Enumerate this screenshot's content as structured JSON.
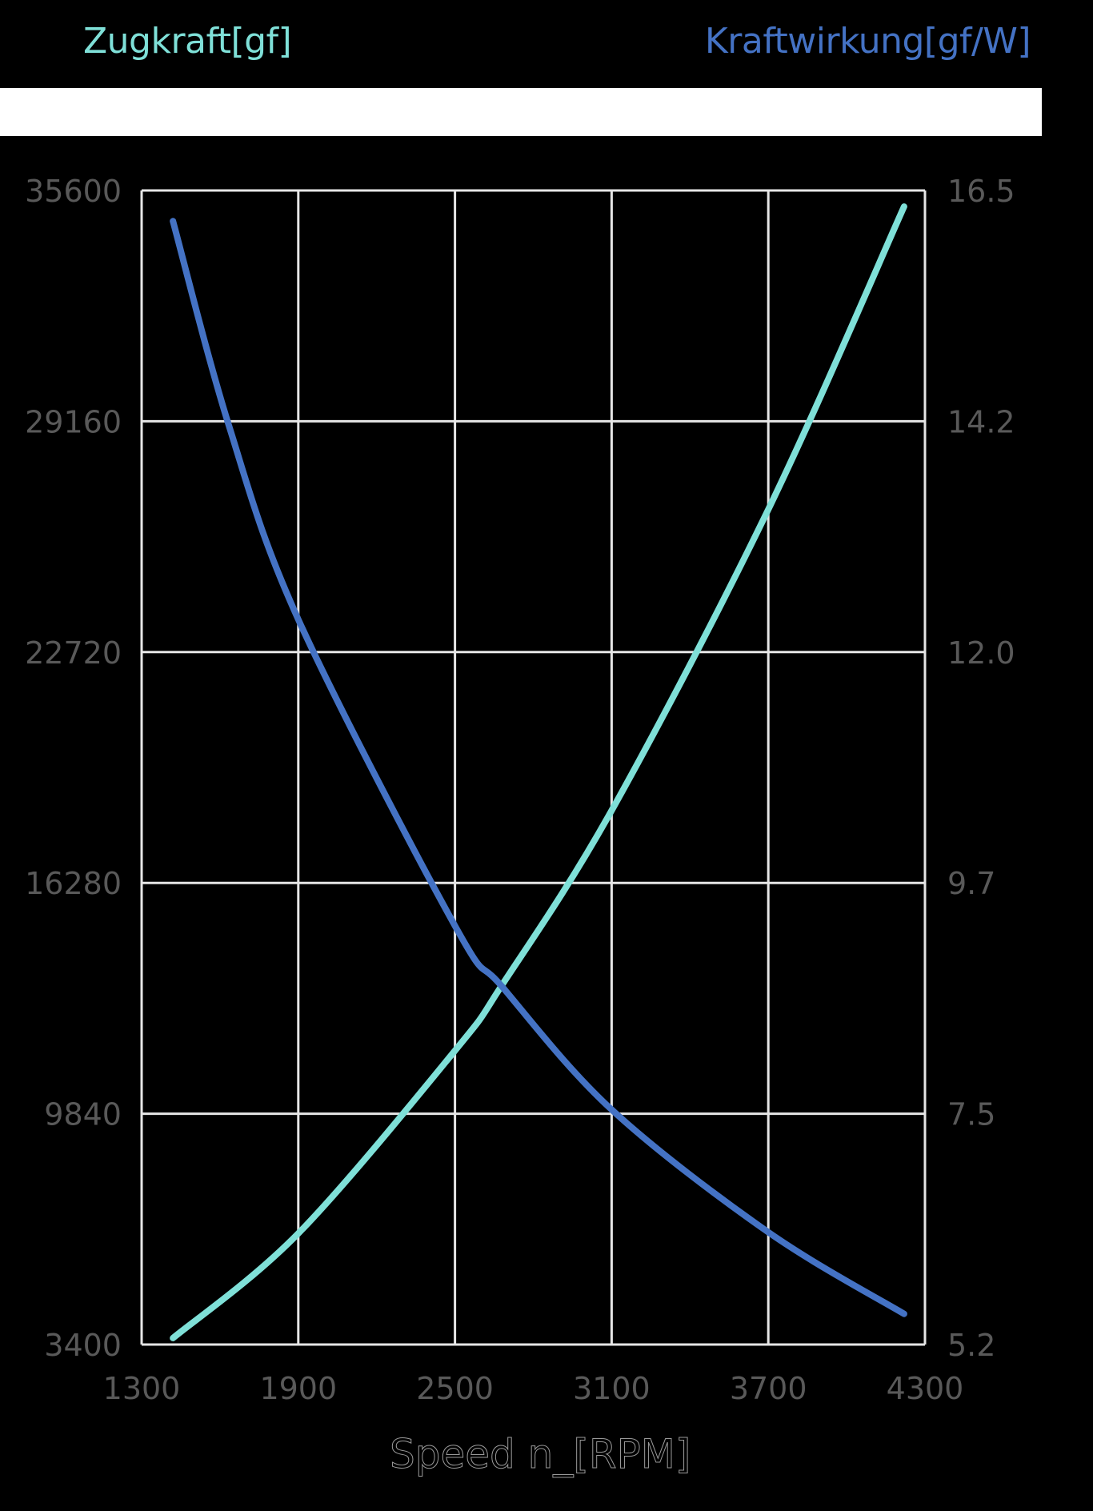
{
  "titles": {
    "left": "Zugkraft[gf]",
    "right": "Kraftwirkung[gf/W]"
  },
  "colors": {
    "background": "#000000",
    "grid": "#e6e6e6",
    "tick_label": "#595959",
    "thrust": "#7fe0d8",
    "efficiency": "#4472c4",
    "banner": "#ffffff"
  },
  "axes": {
    "x_label": "Speed n_[RPM]",
    "x_ticks": [
      "1300",
      "1900",
      "2500",
      "3100",
      "3700",
      "4300"
    ],
    "y_left_ticks": [
      "35600",
      "29160",
      "22720",
      "16280",
      "9840",
      "3400"
    ],
    "y_right_ticks": [
      "16.5",
      "14.2",
      "12.0",
      "9.7",
      "7.5",
      "5.2"
    ]
  },
  "chart_data": {
    "type": "line",
    "title": "",
    "xlabel": "Speed n_[RPM]",
    "ylabel": "Zugkraft[gf]",
    "ylabel_right": "Kraftwirkung[gf/W]",
    "xlim": [
      1300,
      4300
    ],
    "ylim": [
      3400,
      35600
    ],
    "ylim_right": [
      5.2,
      16.5
    ],
    "grid": true,
    "legend_position": "top (as colored axis titles)",
    "series": [
      {
        "name": "Zugkraft[gf]",
        "axis": "left",
        "color": "#7fe0d8",
        "x": [
          1420,
          1900,
          2500,
          2682,
          3100,
          3700,
          4220
        ],
        "values": [
          3580,
          6500,
          11600,
          13450,
          18300,
          26700,
          35150
        ]
      },
      {
        "name": "Kraftwirkung[gf/W]",
        "axis": "right",
        "color": "#4472c4",
        "x": [
          1420,
          1634,
          1900,
          2500,
          2682,
          3100,
          3700,
          4220
        ],
        "values": [
          16.2,
          14.2,
          12.3,
          9.3,
          8.7,
          7.5,
          6.3,
          5.5
        ]
      }
    ]
  }
}
